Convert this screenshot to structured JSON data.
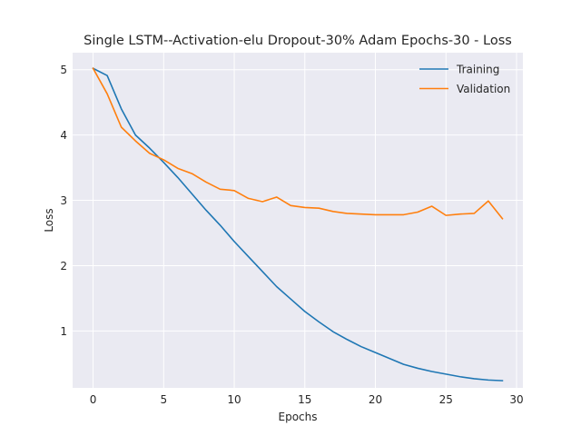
{
  "chart_data": {
    "type": "line",
    "title": "Single LSTM--Activation-elu Dropout-30% Adam Epochs-30 - Loss",
    "xlabel": "Epochs",
    "ylabel": "Loss",
    "xlim": [
      -1.45,
      30.45
    ],
    "ylim": [
      0.13,
      5.26
    ],
    "xticks": [
      0,
      5,
      10,
      15,
      20,
      25,
      30
    ],
    "yticks": [
      1,
      2,
      3,
      4,
      5
    ],
    "grid": true,
    "legend_position": "upper right",
    "x": [
      0,
      1,
      2,
      3,
      4,
      5,
      6,
      7,
      8,
      9,
      10,
      11,
      12,
      13,
      14,
      15,
      16,
      17,
      18,
      19,
      20,
      21,
      22,
      23,
      24,
      25,
      26,
      27,
      28,
      29
    ],
    "series": [
      {
        "name": "Training",
        "color": "#1f77b4",
        "values": [
          5.02,
          4.91,
          4.4,
          4.0,
          3.8,
          3.58,
          3.35,
          3.1,
          2.85,
          2.62,
          2.37,
          2.14,
          1.91,
          1.68,
          1.49,
          1.3,
          1.14,
          0.99,
          0.87,
          0.76,
          0.67,
          0.58,
          0.49,
          0.43,
          0.38,
          0.34,
          0.3,
          0.27,
          0.25,
          0.24
        ]
      },
      {
        "name": "Validation",
        "color": "#ff7f0e",
        "values": [
          5.02,
          4.63,
          4.12,
          3.91,
          3.72,
          3.62,
          3.49,
          3.41,
          3.28,
          3.17,
          3.15,
          3.03,
          2.98,
          3.05,
          2.92,
          2.89,
          2.88,
          2.83,
          2.8,
          2.79,
          2.78,
          2.78,
          2.78,
          2.82,
          2.91,
          2.77,
          2.79,
          2.8,
          2.99,
          2.72
        ]
      }
    ]
  }
}
